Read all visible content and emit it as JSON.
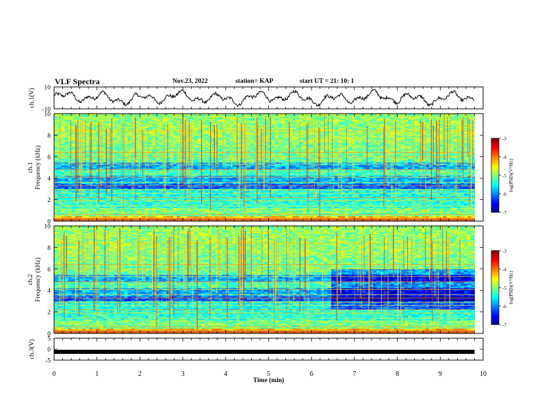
{
  "header": {
    "title": "VLF Spectra",
    "date": "Nov.23, 2022",
    "station": "station= KAP",
    "start": "start  UT =   21: 10: 1"
  },
  "chart_data": [
    {
      "type": "line",
      "panel": "ch1-waveform",
      "ylabel": "ch.1(V)",
      "ylim": [
        -10,
        10
      ],
      "yticks": [
        "10",
        "-10"
      ],
      "xlim": [
        0,
        10
      ],
      "x_extent_min": 9.8,
      "series": [
        {
          "values_note_only_not_printed": null
        }
      ]
    },
    {
      "type": "heatmap",
      "panel": "ch1-spectrogram",
      "ylabel": "ch.1\nFrequency (kHz)",
      "ylabel_line1": "ch.1",
      "ylabel_line2": "Frequency (kHz)",
      "ylim": [
        0,
        10
      ],
      "yticks": [
        "0",
        "2",
        "4",
        "6",
        "8",
        "10"
      ],
      "xlim": [
        0,
        10
      ],
      "x_extent_min": 9.8,
      "colorbar": {
        "label": "log(PSD)(V²/Hz)",
        "range": [
          -7,
          -3
        ],
        "ticks": [
          "-3",
          "-4",
          "-5",
          "-6",
          "-7"
        ],
        "colormap": "jet"
      }
    },
    {
      "type": "heatmap",
      "panel": "ch2-spectrogram",
      "ylabel_line1": "ch.2",
      "ylabel_line2": "Frequency (kHz)",
      "ylim": [
        0,
        10
      ],
      "yticks": [
        "0",
        "2",
        "4",
        "6",
        "8",
        "10"
      ],
      "xlim": [
        0,
        10
      ],
      "x_extent_min": 9.8,
      "colorbar": {
        "label": "log(PSD)(V²/Hz)",
        "range": [
          -7,
          -3
        ],
        "ticks": [
          "-3",
          "-4",
          "-5",
          "-6",
          "-7"
        ],
        "colormap": "jet"
      }
    },
    {
      "type": "line",
      "panel": "ch3-waveform",
      "ylabel": "ch.3(V)",
      "ylim": [
        -5,
        5
      ],
      "yticks": [
        "5",
        "0",
        "-5"
      ],
      "xlim": [
        0,
        10
      ],
      "xticks": [
        "0",
        "1",
        "2",
        "3",
        "4",
        "5",
        "6",
        "7",
        "8",
        "9",
        "10"
      ],
      "xlabel": "Time  (min)",
      "series": [
        {
          "level_V": -1.2,
          "extent_min": [
            0,
            9.8
          ]
        }
      ]
    }
  ]
}
